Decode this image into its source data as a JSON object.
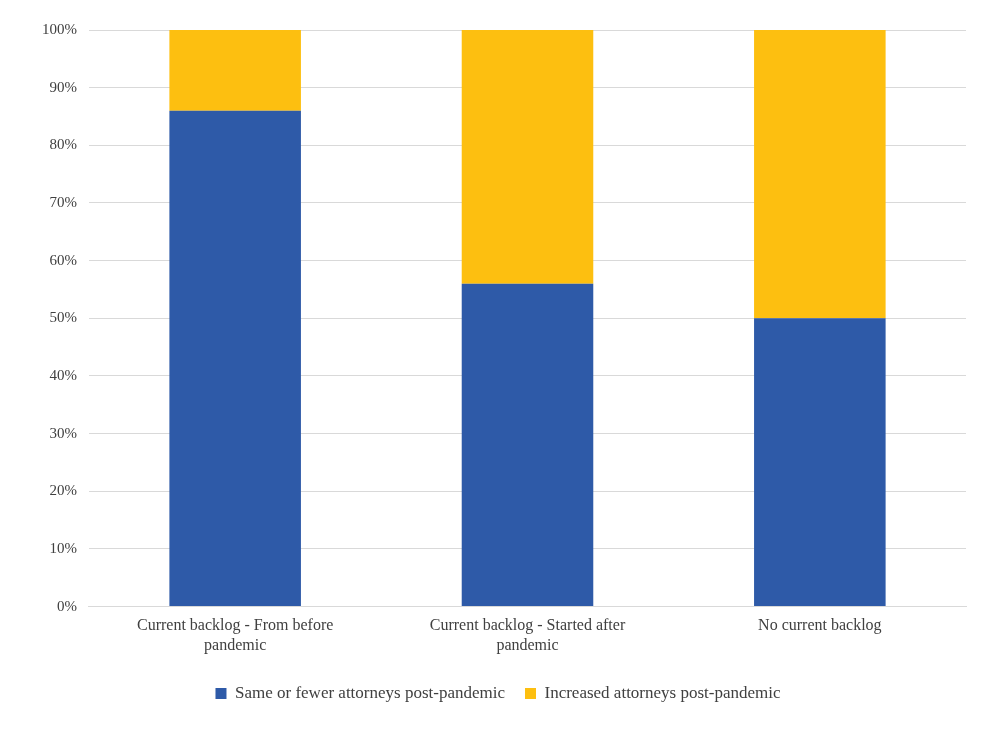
{
  "chart_data": {
    "type": "bar",
    "stacked": true,
    "categories": [
      "Current backlog - From before pandemic",
      "Current backlog - Started after pandemic",
      "No current backlog"
    ],
    "series": [
      {
        "name": "Same or fewer attorneys post-pandemic",
        "color": "#2e5aa8",
        "values": [
          86,
          56,
          50
        ]
      },
      {
        "name": "Increased attorneys post-pandemic",
        "color": "#fdbf10",
        "values": [
          14,
          44,
          50
        ]
      }
    ],
    "ylim": [
      0,
      100
    ],
    "yticks": [
      {
        "value": 0,
        "label": "0%"
      },
      {
        "value": 10,
        "label": "10%"
      },
      {
        "value": 20,
        "label": "20%"
      },
      {
        "value": 30,
        "label": "30%"
      },
      {
        "value": 40,
        "label": "40%"
      },
      {
        "value": 50,
        "label": "50%"
      },
      {
        "value": 60,
        "label": "60%"
      },
      {
        "value": 70,
        "label": "70%"
      },
      {
        "value": 80,
        "label": "80%"
      },
      {
        "value": 90,
        "label": "90%"
      },
      {
        "value": 100,
        "label": "100%"
      }
    ],
    "grid": "y",
    "legend": "bottom"
  }
}
